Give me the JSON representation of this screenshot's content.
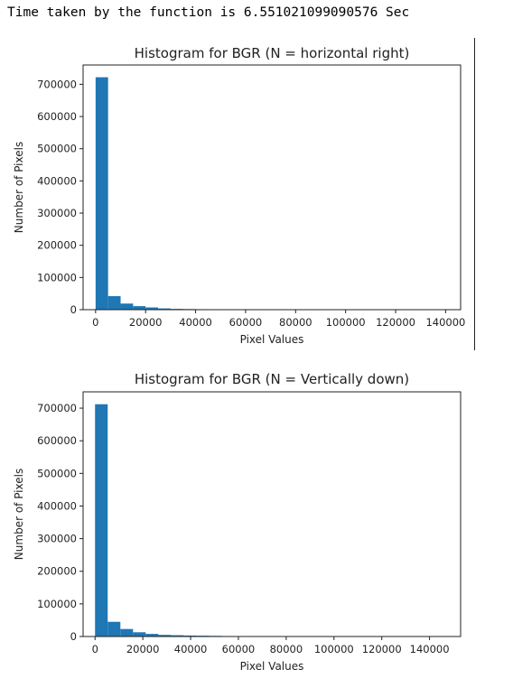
{
  "console": {
    "output": "Time taken by the function is 6.551021099090576 Sec"
  },
  "colors": {
    "bar": "#1f77b4",
    "axis": "#222222"
  },
  "chart_data": [
    {
      "type": "bar",
      "title": "Histogram for BGR (N = horizontal right)",
      "xlabel": "Pixel Values",
      "ylabel": "Number of Pixels",
      "xlim": [
        -5000,
        146000
      ],
      "ylim": [
        0,
        760000
      ],
      "xticks": [
        0,
        20000,
        40000,
        60000,
        80000,
        100000,
        120000,
        140000
      ],
      "yticks": [
        0,
        100000,
        200000,
        300000,
        400000,
        500000,
        600000,
        700000
      ],
      "bin_edges": [
        0,
        5000,
        10000,
        15000,
        20000,
        25000,
        30000,
        35000,
        40000,
        45000,
        50000
      ],
      "values": [
        722000,
        42000,
        19000,
        11000,
        7000,
        4000,
        2500,
        2000,
        1500,
        1200
      ],
      "grid": false,
      "legend": "none"
    },
    {
      "type": "bar",
      "title": "Histogram for BGR (N = Vertically down)",
      "xlabel": "Pixel Values",
      "ylabel": "Number of Pixels",
      "xlim": [
        -5000,
        153000
      ],
      "ylim": [
        0,
        750000
      ],
      "xticks": [
        0,
        20000,
        40000,
        60000,
        80000,
        100000,
        120000,
        140000
      ],
      "yticks": [
        0,
        100000,
        200000,
        300000,
        400000,
        500000,
        600000,
        700000
      ],
      "bin_edges": [
        0,
        5300,
        10600,
        15900,
        21200,
        26500,
        31800,
        37100,
        42400,
        47700,
        53000
      ],
      "values": [
        712000,
        45000,
        23000,
        13000,
        8000,
        5000,
        4000,
        3000,
        2500,
        2000
      ],
      "grid": false,
      "legend": "none"
    }
  ]
}
